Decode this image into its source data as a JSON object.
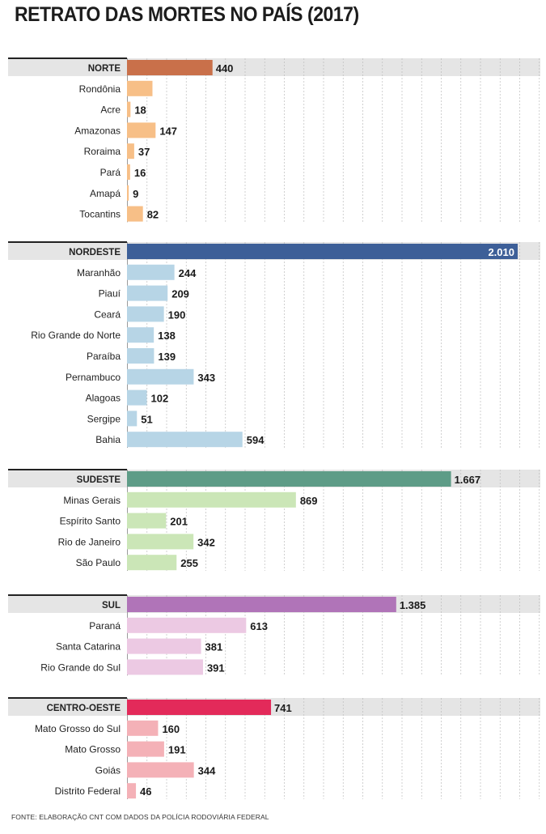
{
  "title": "RETRATO DAS MORTES NO PAÍS (2017)",
  "source": "FONTE: ELABORAÇÃO CNT COM DADOS DA POLÍCIA RODOVIÁRIA FEDERAL",
  "chart_data": {
    "type": "bar",
    "orientation": "horizontal",
    "title": "RETRATO DAS MORTES NO PAÍS (2017)",
    "xlim": [
      0,
      2050
    ],
    "grid": true,
    "groups": [
      {
        "region": "NORTE",
        "total": 440,
        "total_label": "440",
        "region_color": "#c9704a",
        "state_color": "#f7bf87",
        "states": [
          {
            "name": "Rondônia",
            "value": 131,
            "label": ""
          },
          {
            "name": "Acre",
            "value": 18,
            "label": "18"
          },
          {
            "name": "Amazonas",
            "value": 147,
            "label": "147"
          },
          {
            "name": "Roraima",
            "value": 37,
            "label": "37"
          },
          {
            "name": "Pará",
            "value": 16,
            "label": "16"
          },
          {
            "name": "Amapá",
            "value": 9,
            "label": "9"
          },
          {
            "name": "Tocantins",
            "value": 82,
            "label": "82"
          }
        ]
      },
      {
        "region": "NORDESTE",
        "total": 2010,
        "total_label": "2.010",
        "region_color": "#3d5f98",
        "state_color": "#b7d5e6",
        "states": [
          {
            "name": "Maranhão",
            "value": 244,
            "label": "244"
          },
          {
            "name": "Piauí",
            "value": 209,
            "label": "209"
          },
          {
            "name": "Ceará",
            "value": 190,
            "label": "190"
          },
          {
            "name": "Rio Grande do Norte",
            "value": 138,
            "label": "138"
          },
          {
            "name": "Paraíba",
            "value": 139,
            "label": "139"
          },
          {
            "name": "Pernambuco",
            "value": 343,
            "label": "343"
          },
          {
            "name": "Alagoas",
            "value": 102,
            "label": "102"
          },
          {
            "name": "Sergipe",
            "value": 51,
            "label": "51"
          },
          {
            "name": "Bahia",
            "value": 594,
            "label": "594"
          }
        ]
      },
      {
        "region": "SUDESTE",
        "total": 1667,
        "total_label": "1.667",
        "region_color": "#5e9c87",
        "state_color": "#cbe6b7",
        "states": [
          {
            "name": "Minas Gerais",
            "value": 869,
            "label": "869"
          },
          {
            "name": "Espírito Santo",
            "value": 201,
            "label": "201"
          },
          {
            "name": "Rio de Janeiro",
            "value": 342,
            "label": "342"
          },
          {
            "name": "São Paulo",
            "value": 255,
            "label": "255"
          }
        ]
      },
      {
        "region": "SUL",
        "total": 1385,
        "total_label": "1.385",
        "region_color": "#b074b8",
        "state_color": "#ecc9e3",
        "states": [
          {
            "name": "Paraná",
            "value": 613,
            "label": "613"
          },
          {
            "name": "Santa Catarina",
            "value": 381,
            "label": "381"
          },
          {
            "name": "Rio Grande do Sul",
            "value": 391,
            "label": "391"
          }
        ]
      },
      {
        "region": "CENTRO-OESTE",
        "total": 741,
        "total_label": "741",
        "region_color": "#e32a5a",
        "state_color": "#f4b1b7",
        "states": [
          {
            "name": "Mato Grosso do Sul",
            "value": 160,
            "label": "160"
          },
          {
            "name": "Mato Grosso",
            "value": 191,
            "label": "191"
          },
          {
            "name": "Goiás",
            "value": 344,
            "label": "344"
          },
          {
            "name": "Distrito Federal",
            "value": 46,
            "label": "46"
          }
        ]
      }
    ]
  }
}
